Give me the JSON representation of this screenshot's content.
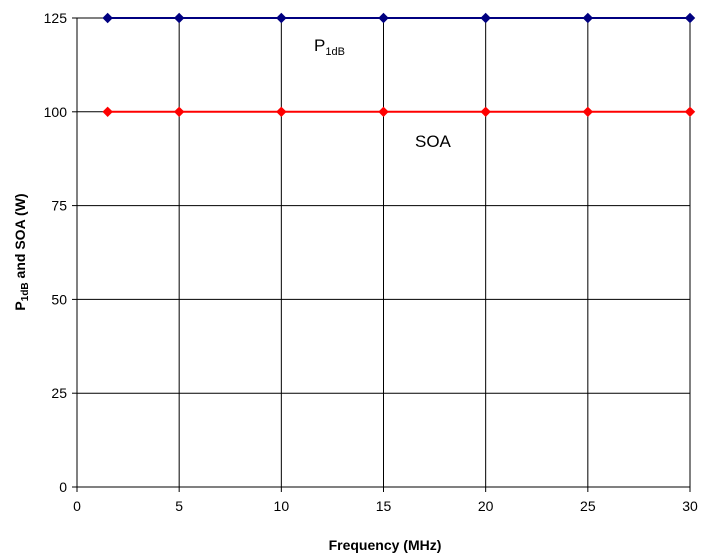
{
  "chart_data": {
    "type": "line",
    "xlabel": "Frequency (MHz)",
    "ylabel": {
      "main": "P",
      "sub": "1dB",
      "rest": " and SOA (W)"
    },
    "xlim": [
      0,
      30
    ],
    "ylim": [
      0,
      125
    ],
    "xticks": [
      0,
      5,
      10,
      15,
      20,
      25,
      30
    ],
    "yticks": [
      0,
      25,
      50,
      75,
      100,
      125
    ],
    "grid": true,
    "series": [
      {
        "name": {
          "main": "P",
          "sub": "1dB"
        },
        "color": "#000080",
        "marker": "diamond",
        "x": [
          1.5,
          5,
          10,
          15,
          20,
          25,
          30
        ],
        "y": [
          125,
          125,
          125,
          125,
          125,
          125,
          125
        ]
      },
      {
        "name": "SOA",
        "color": "#ff0000",
        "marker": "diamond",
        "x": [
          1.5,
          5,
          10,
          15,
          20,
          25,
          30
        ],
        "y": [
          100,
          100,
          100,
          100,
          100,
          100,
          100
        ]
      }
    ]
  }
}
